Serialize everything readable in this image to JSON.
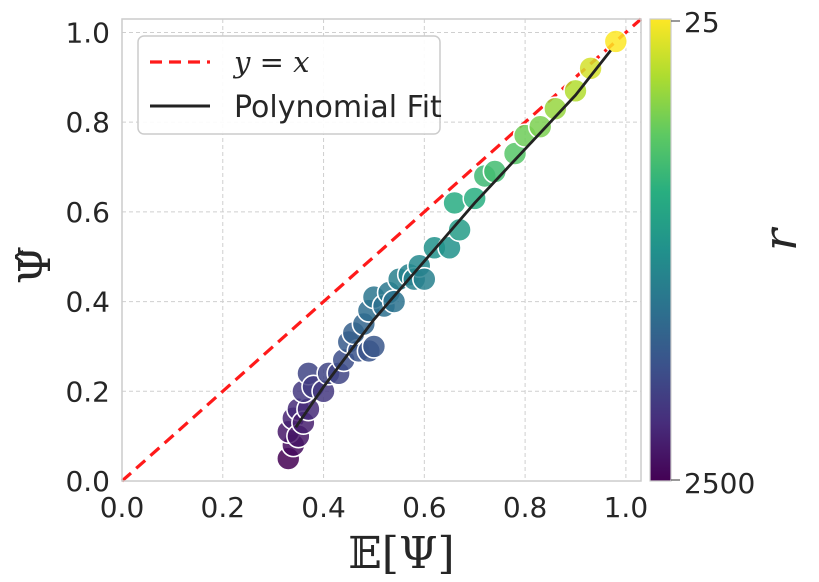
{
  "chart_data": {
    "type": "scatter",
    "xlabel": "𝔼[Ψ]",
    "ylabel": "Ψ̂",
    "xlim": [
      0.0,
      1.03
    ],
    "ylim": [
      0.0,
      1.03
    ],
    "xticks": [
      "0.0",
      "0.2",
      "0.4",
      "0.6",
      "0.8",
      "1.0"
    ],
    "yticks": [
      "0.0",
      "0.2",
      "0.4",
      "0.6",
      "0.8",
      "1.0"
    ],
    "grid": true,
    "legend_position": "top-left",
    "legend": [
      {
        "label": "y = x",
        "style": "dashed",
        "color": "#ff1a1a"
      },
      {
        "label": "Polynomial Fit",
        "style": "solid",
        "color": "#222222"
      }
    ],
    "colorbar": {
      "label": "r",
      "colormap": "viridis",
      "top_label": "25",
      "bottom_label": "2500"
    },
    "series": [
      {
        "name": "points",
        "points": [
          [
            0.33,
            0.05
          ],
          [
            0.34,
            0.08
          ],
          [
            0.33,
            0.11
          ],
          [
            0.34,
            0.14
          ],
          [
            0.35,
            0.1
          ],
          [
            0.35,
            0.16
          ],
          [
            0.36,
            0.13
          ],
          [
            0.37,
            0.16
          ],
          [
            0.36,
            0.2
          ],
          [
            0.37,
            0.24
          ],
          [
            0.38,
            0.21
          ],
          [
            0.4,
            0.2
          ],
          [
            0.41,
            0.24
          ],
          [
            0.43,
            0.24
          ],
          [
            0.44,
            0.27
          ],
          [
            0.45,
            0.31
          ],
          [
            0.47,
            0.29
          ],
          [
            0.46,
            0.33
          ],
          [
            0.48,
            0.35
          ],
          [
            0.49,
            0.29
          ],
          [
            0.5,
            0.3
          ],
          [
            0.49,
            0.38
          ],
          [
            0.5,
            0.41
          ],
          [
            0.52,
            0.39
          ],
          [
            0.53,
            0.42
          ],
          [
            0.54,
            0.4
          ],
          [
            0.55,
            0.45
          ],
          [
            0.57,
            0.46
          ],
          [
            0.58,
            0.45
          ],
          [
            0.59,
            0.48
          ],
          [
            0.6,
            0.45
          ],
          [
            0.62,
            0.52
          ],
          [
            0.65,
            0.52
          ],
          [
            0.66,
            0.62
          ],
          [
            0.67,
            0.56
          ],
          [
            0.7,
            0.63
          ],
          [
            0.72,
            0.68
          ],
          [
            0.74,
            0.69
          ],
          [
            0.78,
            0.73
          ],
          [
            0.8,
            0.77
          ],
          [
            0.83,
            0.79
          ],
          [
            0.86,
            0.83
          ],
          [
            0.9,
            0.87
          ],
          [
            0.93,
            0.92
          ],
          [
            0.98,
            0.98
          ]
        ]
      }
    ],
    "fit_line": [
      [
        0.345,
        0.12
      ],
      [
        0.4,
        0.21
      ],
      [
        0.5,
        0.36
      ],
      [
        0.6,
        0.49
      ],
      [
        0.7,
        0.62
      ],
      [
        0.8,
        0.74
      ],
      [
        0.9,
        0.86
      ],
      [
        0.97,
        0.96
      ]
    ],
    "reference_line": [
      [
        0.0,
        0.0
      ],
      [
        1.03,
        1.03
      ]
    ]
  }
}
